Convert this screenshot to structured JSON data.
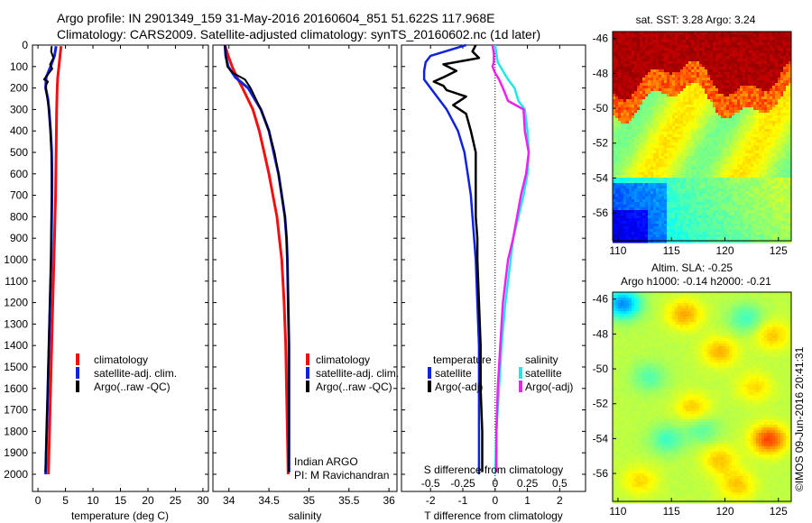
{
  "header": {
    "line1": "Argo profile: IN 2901349_159 31-May-2016 20160604_851 51.622S 117.968E",
    "line2": "Climatology: CARS2009. Satellite-adjusted climatology: synTS_20160602.nc (1d later)"
  },
  "credit": "©IMOS 09-Jun-2016 20:41:31",
  "colors": {
    "climatology": "#ee1111",
    "satellite": "#1122dd",
    "argo": "#000000",
    "sat_salinity": "#22e5e5",
    "argo_salinity_adj": "#ee22ee"
  },
  "chart_data": [
    {
      "type": "line",
      "id": "temperature",
      "xlabel": "temperature (deg C)",
      "ylim": [
        2080,
        0
      ],
      "xlim": [
        -1,
        31
      ],
      "xticks": [
        "0",
        "5",
        "10",
        "15",
        "20",
        "25",
        "30"
      ],
      "xtick_values": [
        0,
        5,
        10,
        15,
        20,
        25,
        30
      ],
      "yticks": [
        "0",
        "100",
        "200",
        "300",
        "400",
        "500",
        "600",
        "700",
        "800",
        "900",
        "1000",
        "1100",
        "1200",
        "1300",
        "1400",
        "1500",
        "1600",
        "1700",
        "1800",
        "1900",
        "2000"
      ],
      "ytick_values": [
        0,
        100,
        200,
        300,
        400,
        500,
        600,
        700,
        800,
        900,
        1000,
        1100,
        1200,
        1300,
        1400,
        1500,
        1600,
        1700,
        1800,
        1900,
        2000
      ],
      "legend": [
        "climatology",
        "satellite-adj. clim.",
        "Argo(..raw -QC)"
      ],
      "series": [
        {
          "name": "climatology",
          "color_key": "climatology",
          "depth": [
            5,
            50,
            100,
            150,
            200,
            300,
            400,
            500,
            600,
            700,
            800,
            900,
            1000,
            1200,
            1400,
            1600,
            1800,
            2000
          ],
          "values": [
            4.2,
            4.0,
            3.8,
            3.6,
            3.5,
            3.4,
            3.35,
            3.3,
            3.25,
            3.2,
            3.1,
            3.0,
            2.9,
            2.7,
            2.5,
            2.3,
            2.1,
            1.9
          ]
        },
        {
          "name": "satellite-adj. clim.",
          "color_key": "satellite",
          "depth": [
            5,
            50,
            100,
            150,
            200,
            250,
            300,
            400,
            500,
            600,
            700,
            800,
            900,
            1000,
            1200,
            1400,
            1600,
            1800,
            2000
          ],
          "values": [
            3.3,
            3.0,
            2.3,
            1.5,
            1.4,
            1.8,
            2.0,
            2.3,
            2.5,
            2.55,
            2.55,
            2.5,
            2.45,
            2.4,
            2.2,
            2.0,
            1.8,
            1.6,
            1.4
          ]
        },
        {
          "name": "Argo(..raw -QC)",
          "color_key": "argo",
          "depth": [
            5,
            30,
            60,
            90,
            110,
            130,
            150,
            160,
            170,
            185,
            200,
            250,
            300,
            400,
            500,
            600,
            700,
            800,
            900,
            1000,
            1200,
            1400,
            1600,
            1800,
            1990
          ],
          "values": [
            2.5,
            2.4,
            2.8,
            2.2,
            2.6,
            2.0,
            1.4,
            1.1,
            1.8,
            1.5,
            1.4,
            1.7,
            2.0,
            2.25,
            2.45,
            2.5,
            2.5,
            2.45,
            2.4,
            2.35,
            2.15,
            1.95,
            1.75,
            1.55,
            1.35
          ]
        }
      ]
    },
    {
      "type": "line",
      "id": "salinity",
      "xlabel": "salinity",
      "ylim": [
        2080,
        0
      ],
      "xlim": [
        33.8,
        36.1
      ],
      "xticks": [
        "34",
        "34.5",
        "35",
        "35.5",
        "36"
      ],
      "xtick_values": [
        34,
        34.5,
        35,
        35.5,
        36
      ],
      "legend": [
        "climatology",
        "satellite-adj. clim.",
        "Argo(..raw -QC)"
      ],
      "annotation": [
        "Indian ARGO",
        "PI: M Ravichandran"
      ],
      "series": [
        {
          "name": "climatology",
          "color_key": "climatology",
          "depth": [
            0,
            50,
            100,
            150,
            200,
            300,
            400,
            500,
            600,
            700,
            800,
            900,
            1000,
            1200,
            1400,
            1600,
            1800,
            2000
          ],
          "values": [
            33.95,
            33.99,
            34.04,
            34.1,
            34.17,
            34.3,
            34.38,
            34.44,
            34.5,
            34.55,
            34.6,
            34.63,
            34.66,
            34.69,
            34.71,
            34.72,
            34.73,
            34.74
          ]
        },
        {
          "name": "satellite-adj. clim.",
          "color_key": "satellite",
          "depth": [
            0,
            50,
            100,
            150,
            200,
            300,
            400,
            500,
            600,
            700,
            800,
            900,
            1000,
            1200,
            1400,
            1600,
            1800,
            1990
          ],
          "values": [
            33.95,
            33.96,
            33.99,
            34.08,
            34.24,
            34.4,
            34.5,
            34.56,
            34.62,
            34.66,
            34.7,
            34.72,
            34.73,
            34.74,
            34.75,
            34.75,
            34.75,
            34.75
          ]
        },
        {
          "name": "Argo(..raw -QC)",
          "color_key": "argo",
          "depth": [
            0,
            50,
            100,
            130,
            160,
            200,
            300,
            400,
            500,
            600,
            700,
            800,
            900,
            1000,
            1200,
            1400,
            1600,
            1800,
            1990
          ],
          "values": [
            33.95,
            33.96,
            33.98,
            34.05,
            34.2,
            34.27,
            34.4,
            34.5,
            34.57,
            34.62,
            34.66,
            34.7,
            34.72,
            34.73,
            34.74,
            34.75,
            34.75,
            34.75,
            34.75
          ]
        }
      ]
    },
    {
      "type": "line",
      "id": "difference",
      "xlabel": "T difference from climatology",
      "x2label": "S difference from climatology",
      "ylim": [
        2080,
        0
      ],
      "xlim": [
        -2.9,
        2.8
      ],
      "xticks": [
        "-2",
        "-1",
        "0",
        "1",
        "2"
      ],
      "xtick_values": [
        -2,
        -1,
        0,
        1,
        2
      ],
      "x2ticks": [
        "-0.5",
        "-0.25",
        "0",
        "0.25",
        "0.5"
      ],
      "x2tick_values": [
        -0.5,
        -0.25,
        0,
        0.25,
        0.5
      ],
      "legend_temperature_title": "temperature",
      "legend_salinity_title": "salinity",
      "legend_temperature": [
        "satellite",
        "Argo(-adj)"
      ],
      "legend_salinity": [
        "satellite",
        "Argo(-adj)"
      ],
      "series": [
        {
          "name": "satellite",
          "color_key": "satellite",
          "depth": [
            0,
            50,
            80,
            120,
            160,
            200,
            300,
            400,
            500,
            600,
            700,
            800,
            900,
            1000,
            1200,
            1400,
            1600,
            1800,
            2000
          ],
          "values": [
            -0.9,
            -2.0,
            -2.15,
            -2.2,
            -2.2,
            -2.0,
            -1.5,
            -1.15,
            -0.95,
            -0.85,
            -0.75,
            -0.7,
            -0.65,
            -0.6,
            -0.55,
            -0.5,
            -0.5,
            -0.5,
            -0.5
          ]
        },
        {
          "name": "Argo(-adj)",
          "color_key": "argo",
          "depth": [
            0,
            30,
            60,
            90,
            120,
            150,
            170,
            190,
            210,
            240,
            280,
            320,
            400,
            500,
            600,
            700,
            800,
            900,
            1000,
            1200,
            1400,
            1600,
            1800,
            1990
          ],
          "values": [
            -0.6,
            -0.7,
            -0.5,
            -1.6,
            -1.2,
            -1.6,
            -1.9,
            -1.6,
            -1.5,
            -0.9,
            -1.3,
            -0.9,
            -0.75,
            -0.6,
            -0.6,
            -0.6,
            -0.6,
            -0.55,
            -0.55,
            -0.5,
            -0.45,
            -0.45,
            -0.4,
            -0.4
          ]
        },
        {
          "name": "satellite",
          "color_key": "sat_salinity",
          "depth": [
            0,
            40,
            80,
            120,
            160,
            200,
            260,
            300,
            400,
            500,
            600,
            700,
            800,
            900,
            1000,
            1200,
            1400,
            1600,
            1800,
            2000
          ],
          "values": [
            0,
            0.01,
            0.02,
            0.06,
            0.1,
            0.15,
            0.18,
            0.23,
            0.25,
            0.26,
            0.25,
            0.22,
            0.18,
            0.14,
            0.12,
            0.08,
            0.05,
            0.03,
            0.01,
            0
          ]
        },
        {
          "name": "Argo(-adj)",
          "color_key": "argo_salinity_adj",
          "depth": [
            0,
            40,
            80,
            100,
            130,
            160,
            200,
            260,
            300,
            400,
            500,
            550,
            600,
            700,
            800,
            900,
            1000,
            1200,
            1400,
            1600,
            1800,
            1990
          ],
          "values": [
            -0.02,
            -0.01,
            -0.01,
            -0.02,
            0.0,
            0.03,
            0.06,
            0.1,
            0.22,
            0.23,
            0.26,
            0.25,
            0.24,
            0.2,
            0.17,
            0.14,
            0.1,
            0.06,
            0.04,
            0.02,
            0.01,
            0.01
          ]
        }
      ]
    },
    {
      "type": "heatmap",
      "id": "sst_map",
      "title": "sat. SST: 3.28 Argo: 3.24",
      "xlim": [
        109.5,
        126.2
      ],
      "ylim": [
        -57.6,
        -45.6
      ],
      "xticks": [
        "110",
        "115",
        "120",
        "125"
      ],
      "xtick_values": [
        110,
        115,
        120,
        125
      ],
      "yticks": [
        "-46",
        "-48",
        "-50",
        "-52",
        "-54",
        "-56"
      ],
      "ytick_values": [
        -46,
        -48,
        -50,
        -52,
        -54,
        -56
      ]
    },
    {
      "type": "heatmap",
      "id": "sla_map",
      "title": "Altim. SLA: -0.25",
      "subtitle": "Argo h1000: -0.14 h2000: -0.21",
      "xlim": [
        109.5,
        126.2
      ],
      "ylim": [
        -57.6,
        -45.6
      ],
      "xticks": [
        "110",
        "115",
        "120",
        "125"
      ],
      "xtick_values": [
        110,
        115,
        120,
        125
      ],
      "yticks": [
        "-46",
        "-48",
        "-50",
        "-52",
        "-54",
        "-56"
      ],
      "ytick_values": [
        -46,
        -48,
        -50,
        -52,
        -54,
        -56
      ]
    }
  ]
}
